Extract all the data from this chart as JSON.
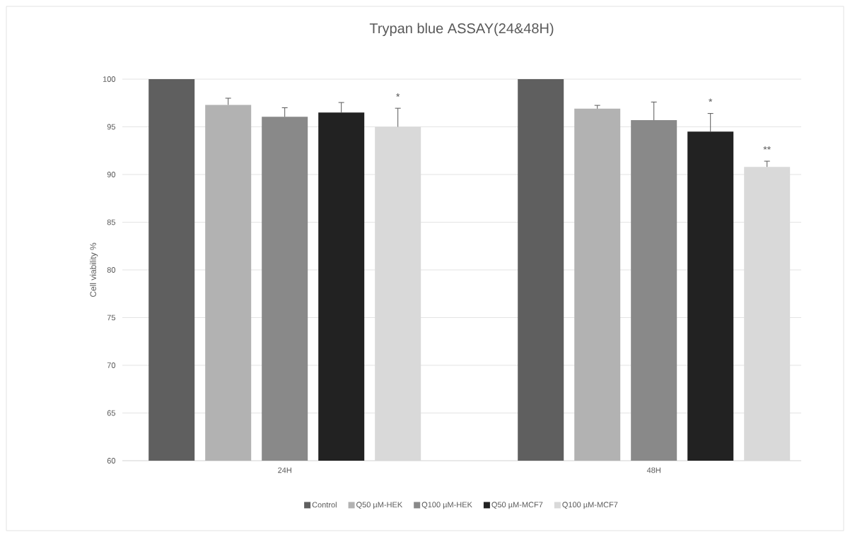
{
  "chart_data": {
    "type": "bar",
    "title": "Trypan blue ASSAY(24&48H)",
    "ylabel": "Cell viability %",
    "categories": [
      "24H",
      "48H"
    ],
    "series": [
      {
        "name": "Control",
        "color": "#5f5f5f",
        "values": [
          100,
          100
        ]
      },
      {
        "name": "Q50 µM-HEK",
        "color": "#b2b2b2",
        "values": [
          97.3,
          96.9
        ],
        "errors": [
          0.7,
          0.35
        ]
      },
      {
        "name": "Q100 µM-HEK",
        "color": "#898989",
        "values": [
          96.05,
          95.7
        ],
        "errors": [
          0.95,
          1.9
        ]
      },
      {
        "name": "Q50 µM-MCF7",
        "color": "#222222",
        "values": [
          96.5,
          94.5
        ],
        "errors": [
          1.05,
          1.9
        ],
        "value_labels": [
          null,
          "*"
        ]
      },
      {
        "name": "Q100 µM-MCF7",
        "color": "#d9d9d9",
        "values": [
          95.0,
          90.8
        ],
        "errors": [
          1.95,
          0.6
        ],
        "value_labels": [
          "*",
          "**"
        ]
      }
    ],
    "ylim": [
      60,
      100
    ],
    "yticks": [
      60,
      65,
      70,
      75,
      80,
      85,
      90,
      95,
      100
    ],
    "grid": "y",
    "legend": "bottom"
  }
}
